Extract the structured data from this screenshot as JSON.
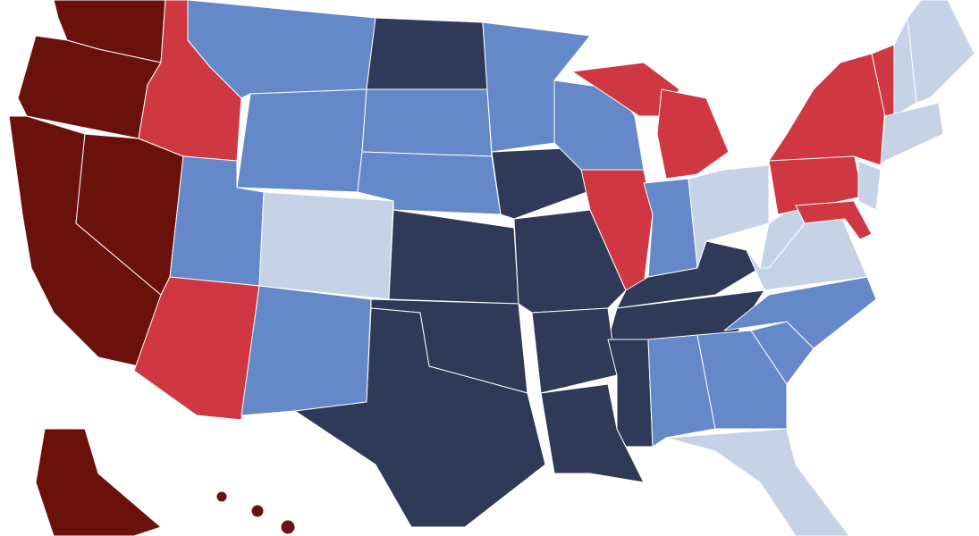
{
  "palette": [
    "#6b110c",
    "#cf3842",
    "#6488c8",
    "#2e3a57",
    "#c6d2e6"
  ]
}
